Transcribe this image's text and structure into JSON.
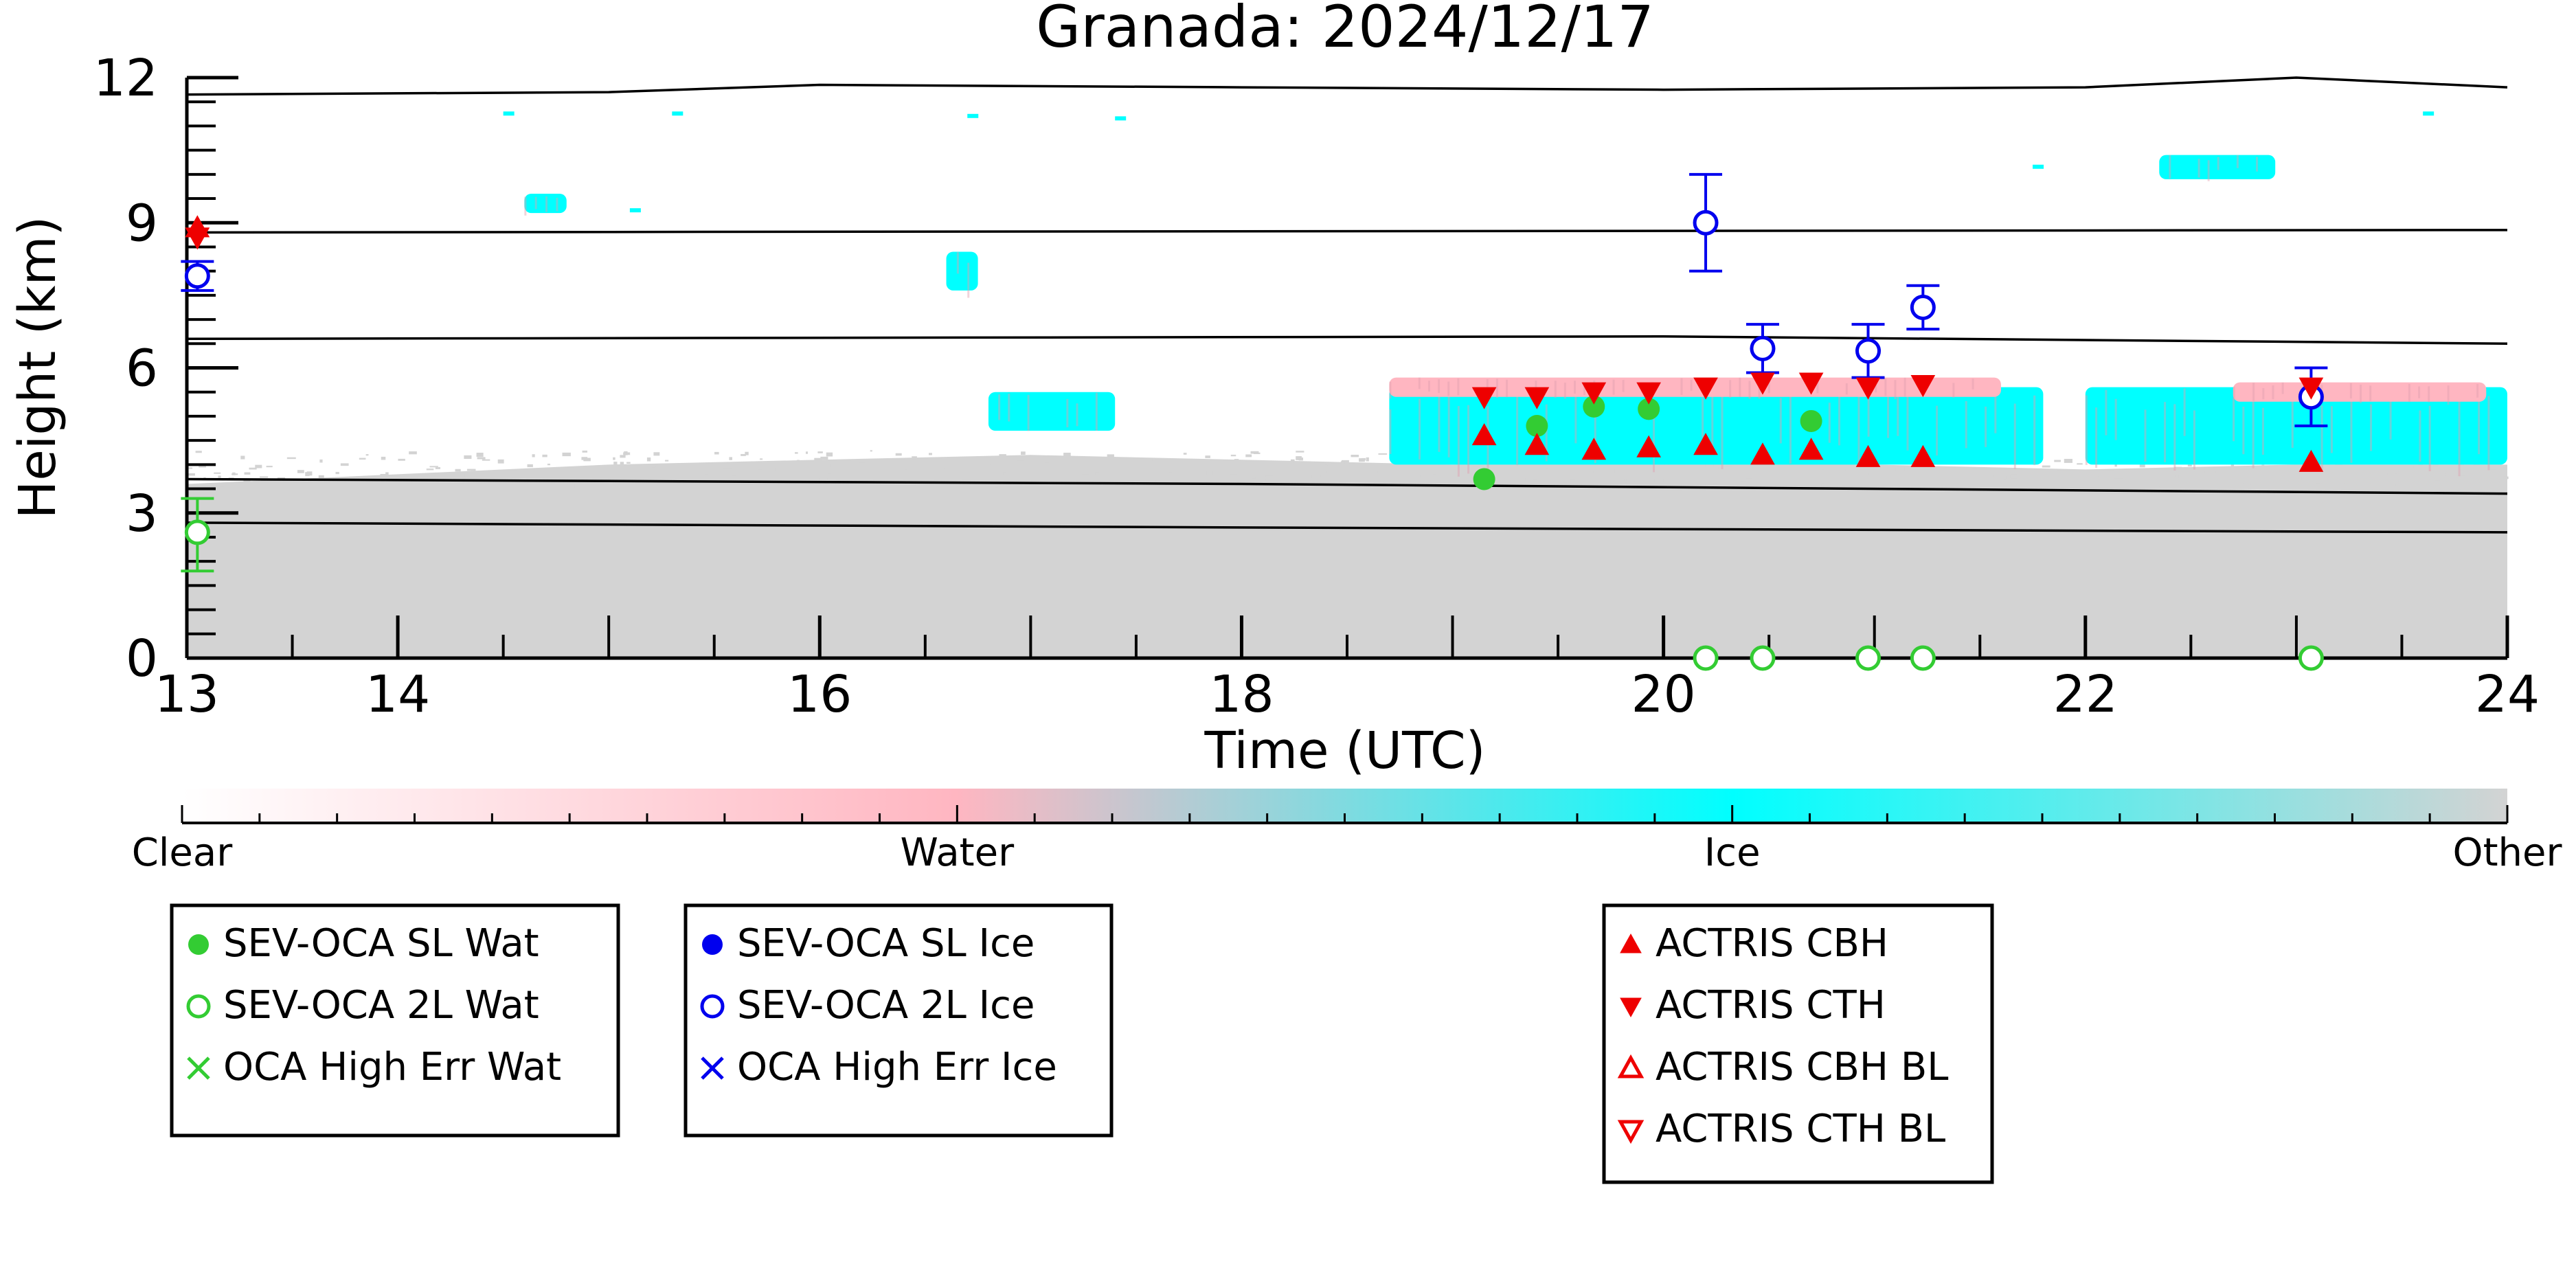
{
  "chart_data": {
    "type": "scatter",
    "title": "Granada: 2024/12/17",
    "xlabel": "Time (UTC)",
    "ylabel": "Height (km)",
    "xlim": [
      13,
      24
    ],
    "ylim": [
      0,
      12
    ],
    "x_ticks": [
      13,
      14,
      16,
      18,
      20,
      22,
      24
    ],
    "y_ticks": [
      0,
      3,
      6,
      9,
      12
    ],
    "background_field": {
      "description_classes": [
        "Clear",
        "Water",
        "Ice",
        "Other"
      ],
      "colorbar": {
        "labels": [
          "Clear",
          "Water",
          "Ice",
          "Other"
        ],
        "colors": [
          "#ffffff",
          "#ffb6c1",
          "#00ffff",
          "#d3d3d3"
        ]
      },
      "other_top_km_by_hour": [
        [
          13,
          3.6
        ],
        [
          14,
          3.8
        ],
        [
          15,
          4.0
        ],
        [
          16,
          4.1
        ],
        [
          17,
          4.2
        ],
        [
          18,
          4.1
        ],
        [
          19,
          4.0
        ],
        [
          20,
          4.1
        ],
        [
          21,
          4.0
        ],
        [
          22,
          3.9
        ],
        [
          23,
          4.0
        ],
        [
          24,
          4.0
        ]
      ],
      "cloud_layers": [
        {
          "name": "ice-mid",
          "x_start": 18.7,
          "x_end": 21.8,
          "y_bottom": 4.0,
          "y_top": 5.6,
          "color": "#00ffff"
        },
        {
          "name": "water-top",
          "x_start": 18.7,
          "x_end": 21.6,
          "y_bottom": 5.4,
          "y_top": 5.8,
          "color": "#ffb6c1"
        },
        {
          "name": "ice-right",
          "x_start": 22.0,
          "x_end": 24.0,
          "y_bottom": 4.0,
          "y_top": 5.6,
          "color": "#00ffff"
        },
        {
          "name": "water-right",
          "x_start": 22.7,
          "x_end": 23.9,
          "y_bottom": 5.3,
          "y_top": 5.7,
          "color": "#ffb6c1"
        },
        {
          "name": "ice-17h",
          "x_start": 16.8,
          "x_end": 17.4,
          "y_bottom": 4.7,
          "y_top": 5.5,
          "color": "#00ffff"
        },
        {
          "name": "ice-high-14h",
          "x_start": 14.6,
          "x_end": 14.8,
          "y_bottom": 9.2,
          "y_top": 9.6,
          "color": "#00ffff"
        },
        {
          "name": "ice-16h",
          "x_start": 16.6,
          "x_end": 16.75,
          "y_bottom": 7.6,
          "y_top": 8.4,
          "color": "#00ffff"
        },
        {
          "name": "ice-high-21h",
          "x_start": 22.35,
          "x_end": 22.9,
          "y_bottom": 9.9,
          "y_top": 10.4,
          "color": "#00ffff"
        }
      ],
      "reference_lines_km": [
        {
          "points": [
            [
              13,
              11.65
            ],
            [
              15,
              11.7
            ],
            [
              16,
              11.85
            ],
            [
              18,
              11.8
            ],
            [
              20,
              11.75
            ],
            [
              22,
              11.8
            ],
            [
              23,
              12.0
            ],
            [
              24,
              11.8
            ]
          ]
        },
        {
          "points": [
            [
              13,
              8.8
            ],
            [
              24,
              8.85
            ]
          ]
        },
        {
          "points": [
            [
              13,
              6.6
            ],
            [
              20,
              6.65
            ],
            [
              24,
              6.5
            ]
          ]
        },
        {
          "points": [
            [
              13,
              3.7
            ],
            [
              18,
              3.6
            ],
            [
              24,
              3.4
            ]
          ]
        },
        {
          "points": [
            [
              13,
              2.8
            ],
            [
              18,
              2.7
            ],
            [
              24,
              2.6
            ]
          ]
        }
      ]
    },
    "series": [
      {
        "name": "SEV-OCA SL Wat",
        "marker": "filled-circle",
        "color": "#33cc33",
        "points": [
          [
            19.15,
            3.7
          ],
          [
            19.4,
            4.8
          ],
          [
            19.67,
            5.2
          ],
          [
            19.93,
            5.15
          ],
          [
            20.7,
            4.9
          ]
        ]
      },
      {
        "name": "SEV-OCA 2L Wat",
        "marker": "open-circle",
        "color": "#33cc33",
        "points": [
          [
            13.05,
            2.6
          ],
          [
            20.2,
            0.0
          ],
          [
            20.47,
            0.0
          ],
          [
            20.97,
            0.0
          ],
          [
            21.23,
            0.0
          ],
          [
            23.07,
            0.0
          ]
        ]
      },
      {
        "name": "OCA High Err Wat",
        "marker": "x",
        "color": "#33cc33",
        "points": []
      },
      {
        "name": "SEV-OCA SL Ice",
        "marker": "filled-circle",
        "color": "#0000ee",
        "points": []
      },
      {
        "name": "SEV-OCA 2L Ice",
        "marker": "open-circle",
        "color": "#0000ee",
        "points": [
          [
            13.05,
            7.9
          ],
          [
            20.2,
            9.0
          ],
          [
            20.47,
            6.4
          ],
          [
            20.97,
            6.35
          ],
          [
            21.23,
            7.25
          ],
          [
            23.07,
            5.4
          ]
        ]
      },
      {
        "name": "OCA High Err Ice",
        "marker": "x",
        "color": "#0000ee",
        "points": []
      },
      {
        "name": "ACTRIS CBH",
        "marker": "triangle-up",
        "color": "#ee0000",
        "points": [
          [
            13.05,
            8.9
          ],
          [
            19.15,
            4.6
          ],
          [
            19.4,
            4.4
          ],
          [
            19.67,
            4.3
          ],
          [
            19.93,
            4.35
          ],
          [
            20.2,
            4.4
          ],
          [
            20.47,
            4.2
          ],
          [
            20.7,
            4.3
          ],
          [
            20.97,
            4.15
          ],
          [
            21.23,
            4.15
          ],
          [
            23.07,
            4.05
          ]
        ]
      },
      {
        "name": "ACTRIS CTH",
        "marker": "triangle-down",
        "color": "#ee0000",
        "points": [
          [
            13.05,
            8.7
          ],
          [
            19.15,
            5.4
          ],
          [
            19.4,
            5.4
          ],
          [
            19.67,
            5.5
          ],
          [
            19.93,
            5.5
          ],
          [
            20.2,
            5.6
          ],
          [
            20.47,
            5.7
          ],
          [
            20.7,
            5.7
          ],
          [
            20.97,
            5.6
          ],
          [
            21.23,
            5.65
          ],
          [
            23.07,
            5.6
          ]
        ]
      },
      {
        "name": "ACTRIS CBH BL",
        "marker": "open-triangle-up",
        "color": "#ee0000",
        "points": []
      },
      {
        "name": "ACTRIS CTH BL",
        "marker": "open-triangle-down",
        "color": "#ee0000",
        "points": []
      }
    ],
    "error_bars": [
      {
        "x": 13.05,
        "y": 2.6,
        "low": 1.8,
        "high": 3.3,
        "color": "#33cc33"
      },
      {
        "x": 13.05,
        "y": 7.9,
        "low": 7.6,
        "high": 8.2,
        "color": "#0000ee"
      },
      {
        "x": 20.2,
        "y": 9.0,
        "low": 8.0,
        "high": 10.0,
        "color": "#0000ee"
      },
      {
        "x": 20.47,
        "y": 6.4,
        "low": 5.9,
        "high": 6.9,
        "color": "#0000ee"
      },
      {
        "x": 20.97,
        "y": 6.35,
        "low": 5.8,
        "high": 6.9,
        "color": "#0000ee"
      },
      {
        "x": 21.23,
        "y": 7.25,
        "low": 6.8,
        "high": 7.7,
        "color": "#0000ee"
      },
      {
        "x": 23.07,
        "y": 5.4,
        "low": 4.8,
        "high": 6.0,
        "color": "#0000ee"
      }
    ],
    "legends": [
      [
        "SEV-OCA SL Wat",
        "SEV-OCA 2L Wat",
        "OCA High Err Wat"
      ],
      [
        "SEV-OCA SL Ice",
        "SEV-OCA 2L Ice",
        "OCA High Err Ice"
      ],
      [
        "ACTRIS CBH",
        "ACTRIS CTH",
        "ACTRIS CBH BL",
        "ACTRIS CTH BL"
      ]
    ],
    "grid": false
  }
}
